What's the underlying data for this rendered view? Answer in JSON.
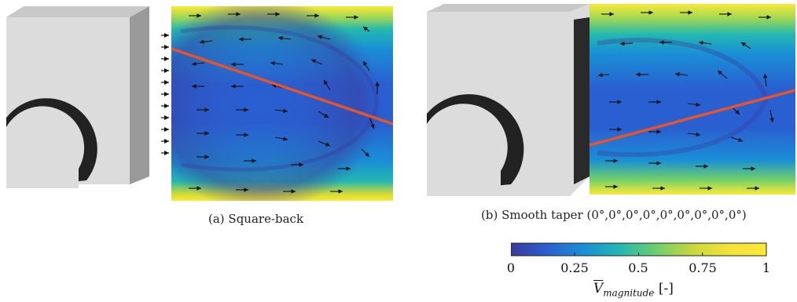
{
  "figure": {
    "panels": [
      {
        "id": "a",
        "caption": "(a) Square-back"
      },
      {
        "id": "b",
        "caption": "(b) Smooth taper (0°,0°,0°,0°,0°,0°,0°,0°,0°)"
      }
    ],
    "colorbar": {
      "ticks": [
        "0",
        "0.25",
        "0.5",
        "0.75",
        "1"
      ],
      "tick_values": [
        0,
        0.25,
        0.5,
        0.75,
        1
      ],
      "symbol": "V",
      "subscript": "magnitude",
      "unit": "[-]",
      "colors": [
        "#3b3a9a",
        "#2a5fd1",
        "#1a8fd6",
        "#23b8b0",
        "#6fcf6a",
        "#c9d83a",
        "#f6e23a",
        "#fbe936"
      ]
    },
    "colors": {
      "vortex_line": "#e8532a",
      "body_light": "#dcdcdc",
      "body_side": "#9a9a9a",
      "arrow": "#111111"
    }
  }
}
